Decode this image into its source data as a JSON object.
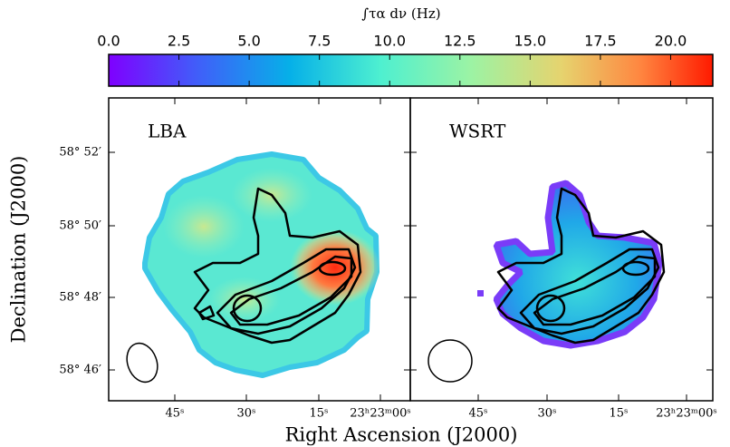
{
  "colorbar": {
    "label": "∫τα dν (Hz)",
    "range": [
      0,
      21.5
    ],
    "ticks": [
      {
        "value": 0,
        "label": "0.0"
      },
      {
        "value": 2.5,
        "label": "2.5"
      },
      {
        "value": 5,
        "label": "5.0"
      },
      {
        "value": 7.5,
        "label": "7.5"
      },
      {
        "value": 10,
        "label": "10.0"
      },
      {
        "value": 12.5,
        "label": "12.5"
      },
      {
        "value": 15,
        "label": "15.0"
      },
      {
        "value": 17.5,
        "label": "17.5"
      },
      {
        "value": 20,
        "label": "20.0"
      }
    ]
  },
  "panels": [
    {
      "title": "LBA",
      "xticks": [
        "45ˢ",
        "30ˢ",
        "15ˢ",
        "23ʰ23ᵐ00ˢ"
      ]
    },
    {
      "title": "WSRT",
      "xticks": [
        "45ˢ",
        "30ˢ",
        "15ˢ",
        "23ʰ23ᵐ00ˢ"
      ]
    }
  ],
  "yticks": [
    "58° 52′",
    "58° 50′",
    "58° 48′",
    "58° 46′"
  ],
  "xlabel": "Right Ascension (J2000)",
  "ylabel": "Declination (J2000)"
}
